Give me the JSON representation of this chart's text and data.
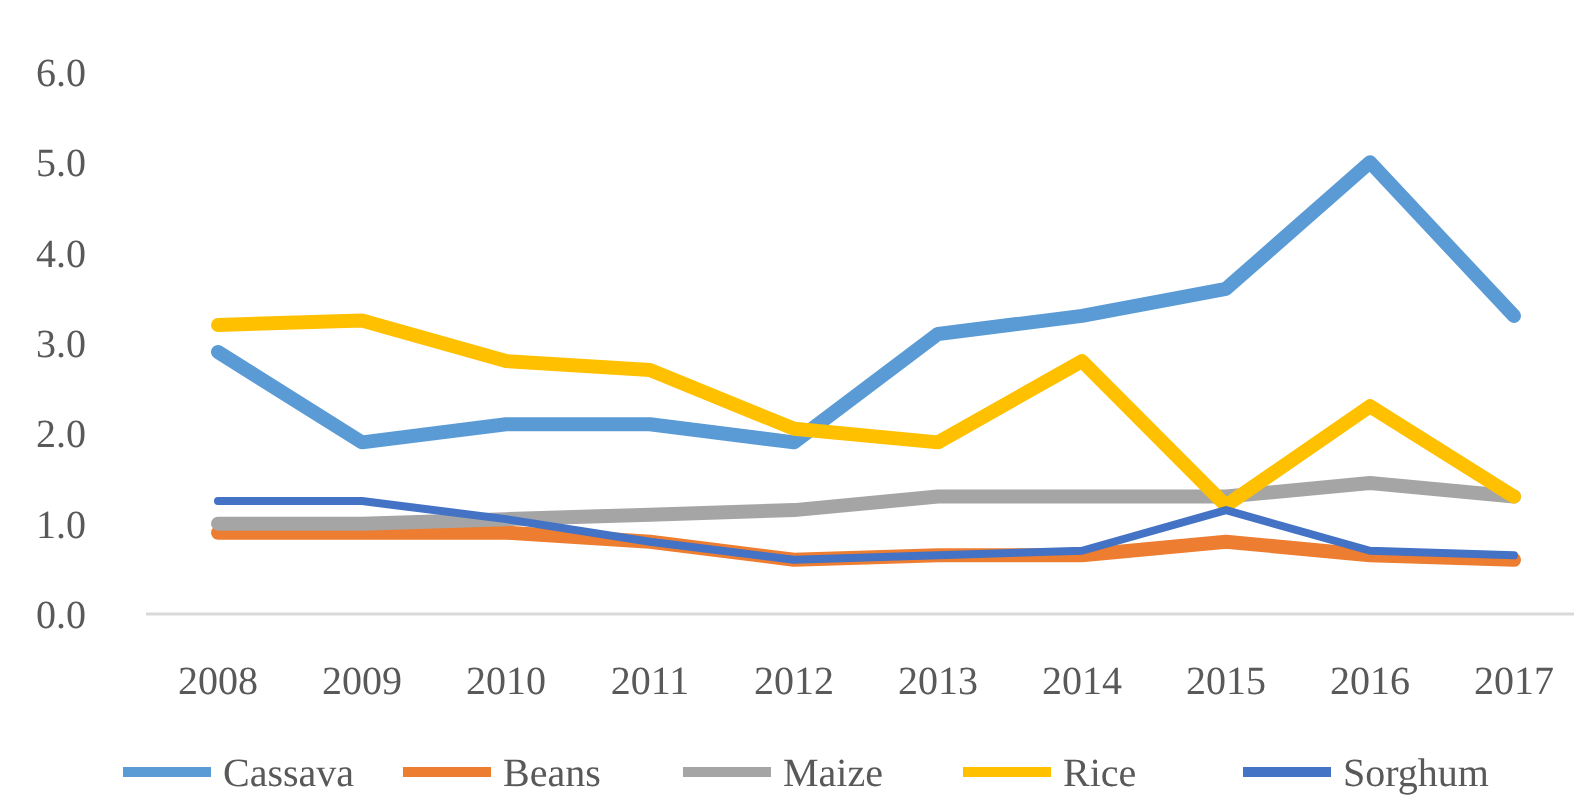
{
  "chart_data": {
    "type": "line",
    "categories": [
      "2008",
      "2009",
      "2010",
      "2011",
      "2012",
      "2013",
      "2014",
      "2015",
      "2016",
      "2017"
    ],
    "series": [
      {
        "name": "Cassava",
        "color": "#5b9bd5",
        "values": [
          2.9,
          1.9,
          2.1,
          2.1,
          1.9,
          3.1,
          3.3,
          3.6,
          5.0,
          3.3
        ]
      },
      {
        "name": "Beans",
        "color": "#ed7d31",
        "values": [
          0.9,
          0.9,
          0.9,
          0.8,
          0.6,
          0.65,
          0.65,
          0.8,
          0.65,
          0.6
        ]
      },
      {
        "name": "Maize",
        "color": "#a5a5a5",
        "values": [
          1.0,
          1.0,
          1.05,
          1.1,
          1.15,
          1.3,
          1.3,
          1.3,
          1.45,
          1.3
        ]
      },
      {
        "name": "Rice",
        "color": "#ffc000",
        "values": [
          3.2,
          3.25,
          2.8,
          2.7,
          2.05,
          1.9,
          2.8,
          1.2,
          2.3,
          1.3
        ]
      },
      {
        "name": "Sorghum",
        "color": "#4472c4",
        "values": [
          1.25,
          1.25,
          1.05,
          0.8,
          0.6,
          0.65,
          0.7,
          1.15,
          0.7,
          0.65
        ]
      }
    ],
    "ylim": [
      0,
      6
    ],
    "yticks": [
      {
        "value": 0,
        "label": "0.0"
      },
      {
        "value": 1,
        "label": "1.0"
      },
      {
        "value": 2,
        "label": "2.0"
      },
      {
        "value": 3,
        "label": "3.0"
      },
      {
        "value": 4,
        "label": "4.0"
      },
      {
        "value": 5,
        "label": "5.0"
      },
      {
        "value": 6,
        "label": "6.0"
      }
    ],
    "legend": "bottom",
    "line_style": "solid"
  }
}
